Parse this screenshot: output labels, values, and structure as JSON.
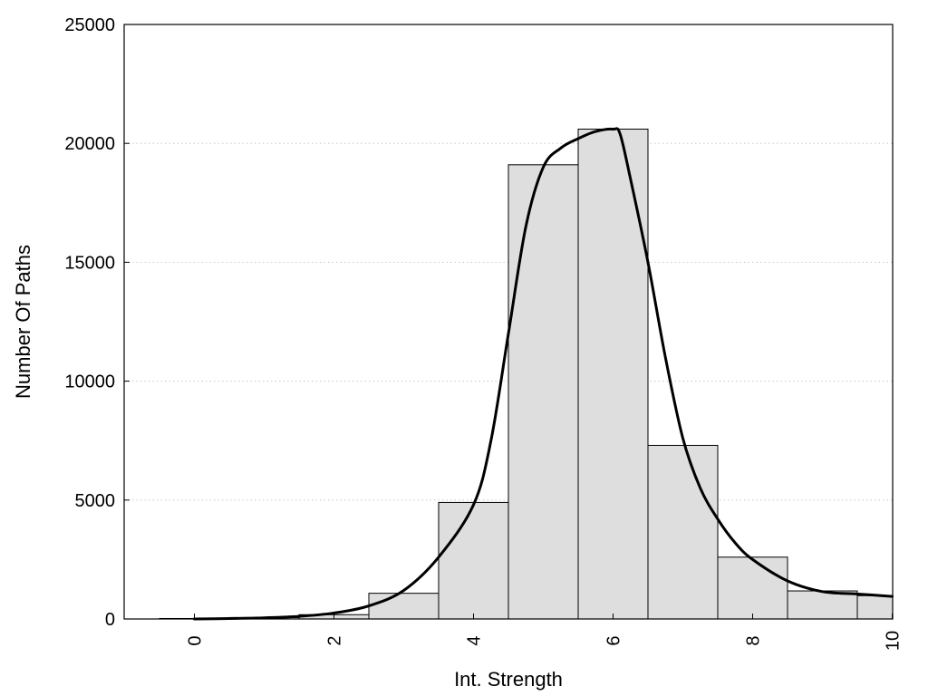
{
  "chart_data": {
    "type": "bar",
    "xlabel": "Int. Strength",
    "ylabel": "Number Of Paths",
    "xlim": [
      -1,
      10
    ],
    "ylim": [
      0,
      25000
    ],
    "x_ticks": [
      0,
      2,
      4,
      6,
      8,
      10
    ],
    "y_ticks": [
      0,
      5000,
      10000,
      15000,
      20000,
      25000
    ],
    "grid": "horizontal dotted",
    "bars": {
      "x": [
        0,
        1,
        2,
        3,
        4,
        5,
        6,
        7,
        8,
        9,
        10
      ],
      "values": [
        20,
        60,
        180,
        1080,
        4900,
        19100,
        20600,
        7300,
        2600,
        1180,
        980
      ]
    },
    "curve": {
      "x": [
        0,
        0.5,
        1,
        1.5,
        2,
        2.5,
        3,
        3.5,
        4,
        4.25,
        4.5,
        4.75,
        5,
        5.25,
        5.5,
        5.75,
        6,
        6.1,
        6.25,
        6.5,
        6.75,
        7,
        7.25,
        7.5,
        7.75,
        8,
        8.5,
        9,
        9.5,
        10
      ],
      "y": [
        0,
        20,
        50,
        110,
        250,
        550,
        1200,
        2600,
        4800,
        7500,
        12000,
        16500,
        19000,
        19800,
        20200,
        20500,
        20600,
        20400,
        18500,
        15000,
        11000,
        7600,
        5500,
        4200,
        3200,
        2500,
        1600,
        1150,
        1050,
        950
      ]
    }
  }
}
